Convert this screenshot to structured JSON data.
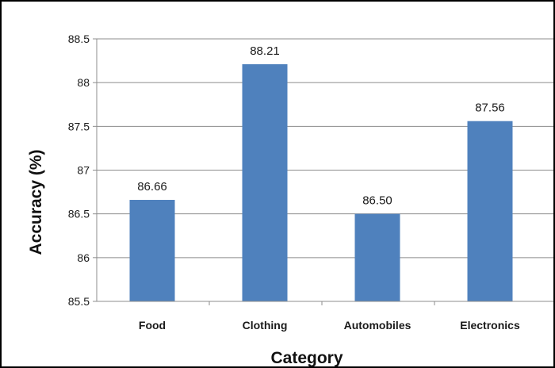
{
  "chart_data": {
    "type": "bar",
    "title": "",
    "xlabel": "Category",
    "ylabel": "Accuracy (%)",
    "categories": [
      "Food",
      "Clothing",
      "Automobiles",
      "Electronics"
    ],
    "values": [
      86.66,
      88.21,
      86.5,
      87.56
    ],
    "data_labels": [
      "86.66",
      "88.21",
      "86.50",
      "87.56"
    ],
    "ylim": [
      85.5,
      88.5
    ],
    "yticks": [
      85.5,
      86,
      86.5,
      87,
      87.5,
      88,
      88.5
    ],
    "ytick_labels": [
      "85.5",
      "86",
      "86.5",
      "87",
      "87.5",
      "88",
      "88.5"
    ],
    "grid": "horizontal",
    "legend": "none",
    "bar_color": "#4f81bd",
    "gridline_color": "#8c8c8c",
    "border_color": "#000000"
  }
}
